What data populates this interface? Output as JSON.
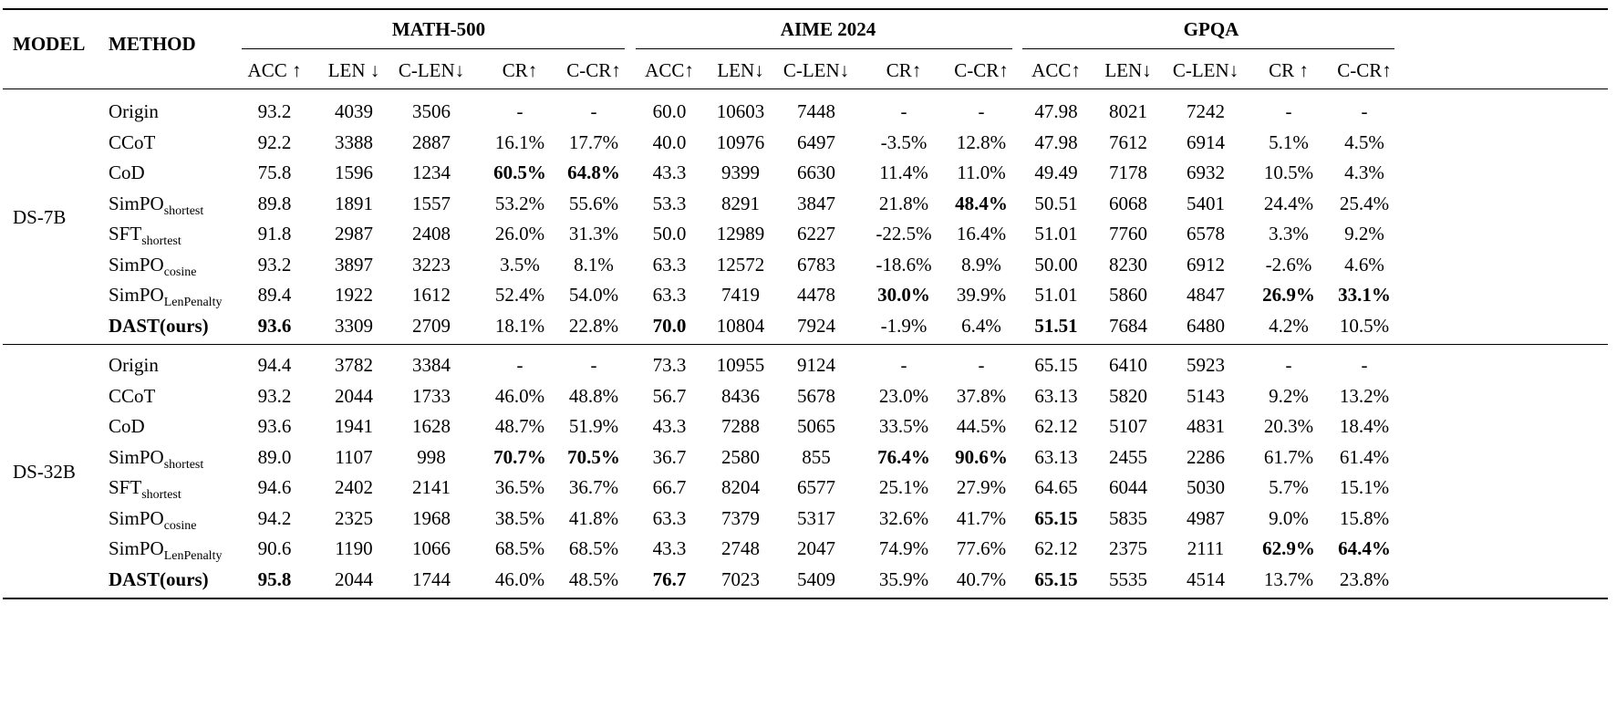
{
  "table": {
    "model_header": "MODEL",
    "method_header": "METHOD",
    "groups": [
      "MATH-500",
      "AIME 2024",
      "GPQA"
    ],
    "subcolumns": [
      [
        "ACC ↑",
        "LEN ↓",
        "C-LEN↓",
        "CR↑",
        "C-CR↑"
      ],
      [
        "ACC↑",
        "LEN↓",
        "C-LEN↓",
        "CR↑",
        "C-CR↑"
      ],
      [
        "ACC↑",
        "LEN↓",
        "C-LEN↓",
        "CR ↑",
        "C-CR↑"
      ]
    ],
    "sections": [
      {
        "model": "DS-7B",
        "rows": [
          {
            "method": "Origin",
            "sub": "",
            "bold_method": false,
            "values": [
              "93.2",
              "4039",
              "3506",
              "-",
              "-",
              "60.0",
              "10603",
              "7448",
              "-",
              "-",
              "47.98",
              "8021",
              "7242",
              "-",
              "-"
            ],
            "bold": []
          },
          {
            "method": "CCoT",
            "sub": "",
            "bold_method": false,
            "values": [
              "92.2",
              "3388",
              "2887",
              "16.1%",
              "17.7%",
              "40.0",
              "10976",
              "6497",
              "-3.5%",
              "12.8%",
              "47.98",
              "7612",
              "6914",
              "5.1%",
              "4.5%"
            ],
            "bold": []
          },
          {
            "method": "CoD",
            "sub": "",
            "bold_method": false,
            "values": [
              "75.8",
              "1596",
              "1234",
              "60.5%",
              "64.8%",
              "43.3",
              "9399",
              "6630",
              "11.4%",
              "11.0%",
              "49.49",
              "7178",
              "6932",
              "10.5%",
              "4.3%"
            ],
            "bold": [
              3,
              4
            ]
          },
          {
            "method": "SimPO",
            "sub": "shortest",
            "bold_method": false,
            "values": [
              "89.8",
              "1891",
              "1557",
              "53.2%",
              "55.6%",
              "53.3",
              "8291",
              "3847",
              "21.8%",
              "48.4%",
              "50.51",
              "6068",
              "5401",
              "24.4%",
              "25.4%"
            ],
            "bold": [
              9
            ]
          },
          {
            "method": "SFT",
            "sub": "shortest",
            "bold_method": false,
            "values": [
              "91.8",
              "2987",
              "2408",
              "26.0%",
              "31.3%",
              "50.0",
              "12989",
              "6227",
              "-22.5%",
              "16.4%",
              "51.01",
              "7760",
              "6578",
              "3.3%",
              "9.2%"
            ],
            "bold": []
          },
          {
            "method": "SimPO",
            "sub": "cosine",
            "bold_method": false,
            "values": [
              "93.2",
              "3897",
              "3223",
              "3.5%",
              "8.1%",
              "63.3",
              "12572",
              "6783",
              "-18.6%",
              "8.9%",
              "50.00",
              "8230",
              "6912",
              "-2.6%",
              "4.6%"
            ],
            "bold": []
          },
          {
            "method": "SimPO",
            "sub": "LenPenalty",
            "bold_method": false,
            "values": [
              "89.4",
              "1922",
              "1612",
              "52.4%",
              "54.0%",
              "63.3",
              "7419",
              "4478",
              "30.0%",
              "39.9%",
              "51.01",
              "5860",
              "4847",
              "26.9%",
              "33.1%"
            ],
            "bold": [
              8,
              13,
              14
            ]
          },
          {
            "method": "DAST(ours)",
            "sub": "",
            "bold_method": true,
            "values": [
              "93.6",
              "3309",
              "2709",
              "18.1%",
              "22.8%",
              "70.0",
              "10804",
              "7924",
              "-1.9%",
              "6.4%",
              "51.51",
              "7684",
              "6480",
              "4.2%",
              "10.5%"
            ],
            "bold": [
              0,
              5,
              10
            ]
          }
        ]
      },
      {
        "model": "DS-32B",
        "rows": [
          {
            "method": "Origin",
            "sub": "",
            "bold_method": false,
            "values": [
              "94.4",
              "3782",
              "3384",
              "-",
              "-",
              "73.3",
              "10955",
              "9124",
              "-",
              "-",
              "65.15",
              "6410",
              "5923",
              "-",
              "-"
            ],
            "bold": []
          },
          {
            "method": "CCoT",
            "sub": "",
            "bold_method": false,
            "values": [
              "93.2",
              "2044",
              "1733",
              "46.0%",
              "48.8%",
              "56.7",
              "8436",
              "5678",
              "23.0%",
              "37.8%",
              "63.13",
              "5820",
              "5143",
              "9.2%",
              "13.2%"
            ],
            "bold": []
          },
          {
            "method": "CoD",
            "sub": "",
            "bold_method": false,
            "values": [
              "93.6",
              "1941",
              "1628",
              "48.7%",
              "51.9%",
              "43.3",
              "7288",
              "5065",
              "33.5%",
              "44.5%",
              "62.12",
              "5107",
              "4831",
              "20.3%",
              "18.4%"
            ],
            "bold": []
          },
          {
            "method": "SimPO",
            "sub": "shortest",
            "bold_method": false,
            "values": [
              "89.0",
              "1107",
              "998",
              "70.7%",
              "70.5%",
              "36.7",
              "2580",
              "855",
              "76.4%",
              "90.6%",
              "63.13",
              "2455",
              "2286",
              "61.7%",
              "61.4%"
            ],
            "bold": [
              3,
              4,
              8,
              9
            ]
          },
          {
            "method": "SFT",
            "sub": "shortest",
            "bold_method": false,
            "values": [
              "94.6",
              "2402",
              "2141",
              "36.5%",
              "36.7%",
              "66.7",
              "8204",
              "6577",
              "25.1%",
              "27.9%",
              "64.65",
              "6044",
              "5030",
              "5.7%",
              "15.1%"
            ],
            "bold": []
          },
          {
            "method": "SimPO",
            "sub": "cosine",
            "bold_method": false,
            "values": [
              "94.2",
              "2325",
              "1968",
              "38.5%",
              "41.8%",
              "63.3",
              "7379",
              "5317",
              "32.6%",
              "41.7%",
              "65.15",
              "5835",
              "4987",
              "9.0%",
              "15.8%"
            ],
            "bold": [
              10
            ]
          },
          {
            "method": "SimPO",
            "sub": "LenPenalty",
            "bold_method": false,
            "values": [
              "90.6",
              "1190",
              "1066",
              "68.5%",
              "68.5%",
              "43.3",
              "2748",
              "2047",
              "74.9%",
              "77.6%",
              "62.12",
              "2375",
              "2111",
              "62.9%",
              "64.4%"
            ],
            "bold": [
              13,
              14
            ]
          },
          {
            "method": "DAST(ours)",
            "sub": "",
            "bold_method": true,
            "values": [
              "95.8",
              "2044",
              "1744",
              "46.0%",
              "48.5%",
              "76.7",
              "7023",
              "5409",
              "35.9%",
              "40.7%",
              "65.15",
              "5535",
              "4514",
              "13.7%",
              "23.8%"
            ],
            "bold": [
              0,
              5,
              10
            ]
          }
        ]
      }
    ]
  }
}
